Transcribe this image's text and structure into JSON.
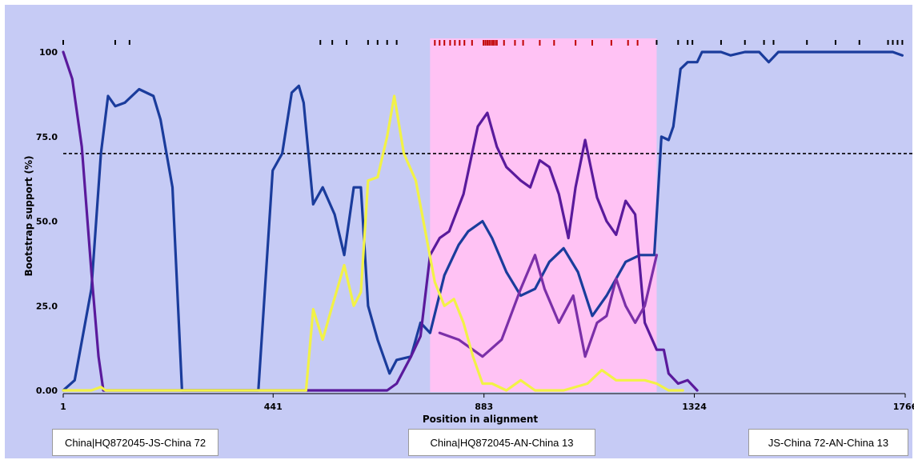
{
  "chart_data": {
    "type": "line",
    "xlabel": "Position in alignment",
    "ylabel": "Bootstrap support (%)",
    "xlim": [
      1,
      1766
    ],
    "ylim": [
      0,
      100
    ],
    "x_ticks": [
      1,
      441,
      883,
      1324,
      1766
    ],
    "x_tick_labels": [
      "1",
      "441",
      "883",
      "1324",
      "1766"
    ],
    "y_ticks": [
      0,
      25,
      50,
      75,
      100
    ],
    "y_tick_labels": [
      "0.00",
      "25.0",
      "50.0",
      "75.0",
      "100"
    ],
    "threshold": 70,
    "highlight_region": [
      770,
      1245
    ],
    "informative_sites_black": [
      1,
      110,
      140,
      540,
      565,
      595,
      640,
      660,
      680,
      700,
      1245,
      1290,
      1310,
      1320,
      1380,
      1430,
      1470,
      1490,
      1560,
      1620,
      1670,
      1730,
      1740,
      1750,
      1760
    ],
    "informative_sites_red": [
      780,
      790,
      800,
      812,
      822,
      832,
      842,
      858,
      882,
      886,
      890,
      894,
      898,
      902,
      906,
      910,
      925,
      948,
      965,
      1000,
      1030,
      1075,
      1110,
      1150,
      1185,
      1205
    ],
    "series": [
      {
        "color": "#1a3c9c",
        "points": [
          [
            1,
            0
          ],
          [
            25,
            3
          ],
          [
            60,
            30
          ],
          [
            80,
            70
          ],
          [
            95,
            87
          ],
          [
            110,
            84
          ],
          [
            130,
            85
          ],
          [
            160,
            89
          ],
          [
            190,
            87
          ],
          [
            205,
            80
          ],
          [
            230,
            60
          ],
          [
            250,
            0
          ],
          [
            410,
            0
          ],
          [
            440,
            65
          ],
          [
            460,
            70
          ],
          [
            480,
            88
          ],
          [
            495,
            90
          ],
          [
            505,
            85
          ],
          [
            525,
            55
          ],
          [
            545,
            60
          ],
          [
            570,
            52
          ],
          [
            590,
            40
          ],
          [
            610,
            60
          ],
          [
            625,
            60
          ],
          [
            640,
            25
          ],
          [
            660,
            15
          ],
          [
            685,
            5
          ],
          [
            700,
            9
          ],
          [
            730,
            10
          ],
          [
            750,
            20
          ],
          [
            770,
            17
          ],
          [
            800,
            34
          ],
          [
            830,
            43
          ],
          [
            850,
            47
          ],
          [
            880,
            50
          ],
          [
            900,
            45
          ],
          [
            930,
            35
          ],
          [
            960,
            28
          ],
          [
            990,
            30
          ],
          [
            1020,
            38
          ],
          [
            1050,
            42
          ],
          [
            1080,
            35
          ],
          [
            1110,
            22
          ],
          [
            1140,
            28
          ],
          [
            1180,
            38
          ],
          [
            1210,
            40
          ],
          [
            1240,
            40
          ],
          [
            1255,
            75
          ],
          [
            1270,
            74
          ],
          [
            1280,
            78
          ],
          [
            1295,
            95
          ],
          [
            1310,
            97
          ],
          [
            1330,
            97
          ],
          [
            1340,
            100
          ],
          [
            1380,
            100
          ],
          [
            1400,
            99
          ],
          [
            1430,
            100
          ],
          [
            1460,
            100
          ],
          [
            1480,
            97
          ],
          [
            1500,
            100
          ],
          [
            1550,
            100
          ],
          [
            1600,
            100
          ],
          [
            1650,
            100
          ],
          [
            1700,
            100
          ],
          [
            1740,
            100
          ],
          [
            1760,
            99
          ]
        ]
      },
      {
        "color": "#5a1a9c",
        "points": [
          [
            1,
            100
          ],
          [
            20,
            92
          ],
          [
            40,
            72
          ],
          [
            60,
            35
          ],
          [
            75,
            10
          ],
          [
            85,
            0
          ],
          [
            510,
            0
          ],
          [
            630,
            0
          ],
          [
            680,
            0
          ],
          [
            700,
            2
          ],
          [
            730,
            10
          ],
          [
            750,
            16
          ],
          [
            770,
            40
          ],
          [
            790,
            45
          ],
          [
            810,
            47
          ],
          [
            840,
            58
          ],
          [
            870,
            78
          ],
          [
            890,
            82
          ],
          [
            910,
            72
          ],
          [
            930,
            66
          ],
          [
            960,
            62
          ],
          [
            980,
            60
          ],
          [
            1000,
            68
          ],
          [
            1020,
            66
          ],
          [
            1040,
            58
          ],
          [
            1060,
            45
          ],
          [
            1075,
            60
          ],
          [
            1095,
            74
          ],
          [
            1120,
            57
          ],
          [
            1140,
            50
          ],
          [
            1160,
            46
          ],
          [
            1180,
            56
          ],
          [
            1200,
            52
          ],
          [
            1220,
            20
          ],
          [
            1245,
            12
          ],
          [
            1260,
            12
          ],
          [
            1270,
            5
          ],
          [
            1290,
            2
          ],
          [
            1310,
            3
          ],
          [
            1330,
            0
          ]
        ]
      },
      {
        "color": "#7b2fa8",
        "points": [
          [
            790,
            17
          ],
          [
            830,
            15
          ],
          [
            880,
            10
          ],
          [
            920,
            15
          ],
          [
            960,
            30
          ],
          [
            990,
            40
          ],
          [
            1010,
            30
          ],
          [
            1040,
            20
          ],
          [
            1070,
            28
          ],
          [
            1095,
            10
          ],
          [
            1120,
            20
          ],
          [
            1140,
            22
          ],
          [
            1160,
            33
          ],
          [
            1180,
            25
          ],
          [
            1200,
            20
          ],
          [
            1220,
            25
          ],
          [
            1245,
            40
          ]
        ]
      },
      {
        "color": "#f2f246",
        "points": [
          [
            1,
            0
          ],
          [
            60,
            0
          ],
          [
            80,
            1
          ],
          [
            90,
            0
          ],
          [
            510,
            0
          ],
          [
            525,
            24
          ],
          [
            545,
            15
          ],
          [
            565,
            25
          ],
          [
            590,
            37
          ],
          [
            610,
            25
          ],
          [
            625,
            29
          ],
          [
            640,
            62
          ],
          [
            660,
            63
          ],
          [
            680,
            75
          ],
          [
            695,
            87
          ],
          [
            715,
            70
          ],
          [
            740,
            62
          ],
          [
            760,
            47
          ],
          [
            780,
            32
          ],
          [
            800,
            25
          ],
          [
            820,
            27
          ],
          [
            840,
            20
          ],
          [
            860,
            10
          ],
          [
            880,
            2
          ],
          [
            900,
            2
          ],
          [
            930,
            0
          ],
          [
            960,
            3
          ],
          [
            990,
            0
          ],
          [
            1050,
            0
          ],
          [
            1100,
            2
          ],
          [
            1130,
            6
          ],
          [
            1160,
            3
          ],
          [
            1190,
            3
          ],
          [
            1220,
            3
          ],
          [
            1245,
            2
          ],
          [
            1270,
            0
          ],
          [
            1300,
            0
          ]
        ]
      }
    ]
  },
  "legend": {
    "left": "China|HQ872045-JS-China 72",
    "middle": "China|HQ872045-AN-China 13",
    "right": "JS-China 72-AN-China 13"
  },
  "colors": {
    "plot_background": "#c6cbf5",
    "highlight": "#ffc2f4",
    "threshold_line": "#000000"
  }
}
